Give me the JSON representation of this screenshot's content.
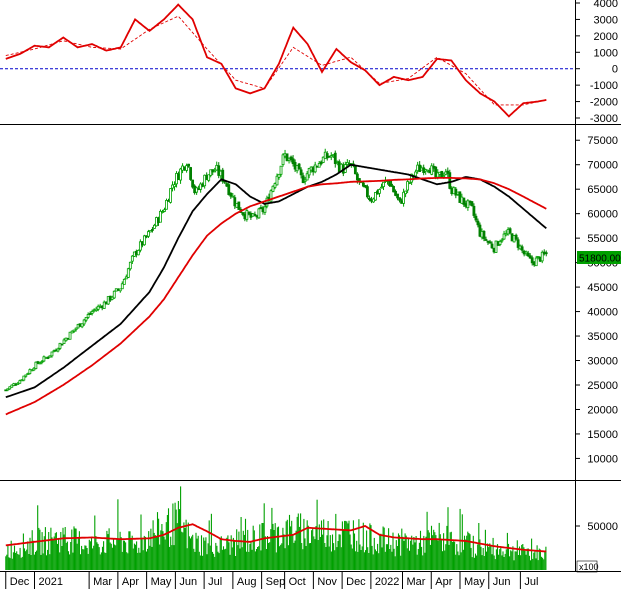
{
  "chart_data": [
    {
      "panel": "macd-oscillator",
      "type": "line",
      "y_ticks": [
        "4000",
        "3000",
        "2000",
        "1000",
        "0",
        "-1000",
        "-2000",
        "-3000"
      ],
      "ylim": [
        -3000,
        4000
      ],
      "zero_line": true,
      "colors": {
        "macd": "#e00000",
        "signal": "#e00000",
        "zero": "#0000cc"
      },
      "series": [
        {
          "role": "macd",
          "style": "solid",
          "x": [
            0.0,
            0.5,
            1.0,
            1.5,
            2.0,
            2.5,
            3.0,
            3.5,
            4.0,
            4.5,
            5.0,
            5.5,
            6.0,
            6.5,
            7.0,
            7.5,
            8.0,
            8.5,
            9.0,
            9.5,
            10.0,
            10.5,
            11.0,
            11.5,
            12.0,
            12.5,
            13.0,
            13.5,
            14.0,
            14.5,
            15.0,
            15.5,
            16.0,
            16.5,
            17.0,
            17.5,
            18.0,
            18.5,
            18.8
          ],
          "values": [
            600,
            900,
            1400,
            1300,
            1900,
            1300,
            1500,
            1100,
            1300,
            3000,
            2300,
            3000,
            3900,
            3000,
            700,
            300,
            -1200,
            -1500,
            -1200,
            300,
            2500,
            1500,
            -200,
            1200,
            400,
            -100,
            -1000,
            -500,
            -700,
            -500,
            600,
            500,
            -700,
            -1500,
            -2000,
            -2900,
            -2100,
            -2000,
            -1900
          ]
        },
        {
          "role": "signal",
          "style": "dashed",
          "x": [
            0.0,
            1.0,
            2.0,
            3.0,
            4.0,
            5.0,
            6.0,
            7.0,
            8.0,
            9.0,
            10.0,
            11.0,
            12.0,
            13.0,
            14.0,
            15.0,
            16.0,
            17.0,
            18.0,
            18.8
          ],
          "values": [
            800,
            1200,
            1700,
            1300,
            1200,
            2400,
            3200,
            1200,
            -700,
            -1200,
            1300,
            200,
            700,
            -900,
            -600,
            700,
            -300,
            -2200,
            -2200,
            -1900
          ]
        }
      ]
    },
    {
      "panel": "price",
      "type": "candlestick",
      "y_ticks": [
        "75000",
        "70000",
        "65000",
        "60000",
        "55000",
        "50000",
        "45000",
        "40000",
        "35000",
        "30000",
        "25000",
        "20000",
        "15000",
        "10000"
      ],
      "ylim": [
        6000,
        77500
      ],
      "last_price_label": "51800.00",
      "colors": {
        "up": "#00a000",
        "down": "#008000",
        "ma_short": "#000000",
        "ma_long": "#e00000",
        "badge": "#00a000"
      },
      "close_path": {
        "x": [
          0.0,
          0.5,
          1.0,
          1.5,
          2.0,
          2.5,
          3.0,
          3.5,
          4.0,
          4.5,
          5.0,
          5.5,
          5.8,
          6.0,
          6.3,
          6.6,
          7.0,
          7.3,
          7.6,
          8.0,
          8.3,
          8.6,
          9.0,
          9.3,
          9.7,
          10.0,
          10.3,
          10.6,
          11.0,
          11.3,
          11.7,
          12.0,
          12.3,
          12.7,
          13.0,
          13.3,
          13.7,
          14.0,
          14.3,
          14.7,
          15.0,
          15.3,
          15.5,
          15.8,
          16.2,
          16.5,
          16.8,
          17.0,
          17.2,
          17.5,
          17.8,
          18.0,
          18.3,
          18.6,
          18.8
        ],
        "values": [
          24000,
          26000,
          29000,
          31000,
          34000,
          37000,
          40000,
          42000,
          45000,
          52000,
          56000,
          61000,
          66000,
          68000,
          71000,
          64000,
          68000,
          69000,
          67000,
          62000,
          60000,
          59000,
          61000,
          66000,
          72000,
          70000,
          67000,
          69000,
          71000,
          72000,
          69000,
          70000,
          66000,
          63000,
          65000,
          67000,
          62000,
          66000,
          69000,
          70000,
          67000,
          69000,
          65000,
          63000,
          61000,
          56000,
          54000,
          53000,
          55000,
          56000,
          54000,
          52000,
          50000,
          51000,
          51800
        ]
      },
      "series": [
        {
          "role": "ma_short",
          "x": [
            0.0,
            1.0,
            2.0,
            3.0,
            4.0,
            5.0,
            5.5,
            6.0,
            6.5,
            7.0,
            7.5,
            8.0,
            8.5,
            9.0,
            9.5,
            10.0,
            10.5,
            11.0,
            11.5,
            12.0,
            12.5,
            13.0,
            13.5,
            14.0,
            14.5,
            15.0,
            15.5,
            16.0,
            16.5,
            17.0,
            17.5,
            18.0,
            18.8
          ],
          "values": [
            22500,
            24500,
            28500,
            33000,
            37500,
            44000,
            49000,
            55000,
            60500,
            64000,
            67000,
            66000,
            63500,
            62000,
            62500,
            64000,
            65500,
            66500,
            68000,
            70000,
            69500,
            69000,
            68500,
            68000,
            67000,
            66000,
            66500,
            67500,
            67000,
            65500,
            63500,
            61000,
            57000
          ]
        },
        {
          "role": "ma_long",
          "x": [
            0.0,
            1.0,
            2.0,
            3.0,
            4.0,
            5.0,
            5.5,
            6.0,
            6.5,
            7.0,
            7.5,
            8.0,
            8.5,
            9.0,
            9.5,
            10.0,
            10.5,
            11.0,
            11.5,
            12.0,
            12.5,
            13.0,
            13.5,
            14.0,
            14.5,
            15.0,
            15.5,
            16.0,
            16.5,
            17.0,
            17.5,
            18.0,
            18.8
          ],
          "values": [
            19000,
            21500,
            25000,
            29000,
            33500,
            39000,
            42500,
            47000,
            51500,
            55500,
            58000,
            60000,
            61500,
            62500,
            63500,
            64500,
            65500,
            66000,
            66200,
            66500,
            66600,
            66700,
            66900,
            67000,
            67200,
            67300,
            67300,
            67200,
            67000,
            66200,
            65000,
            63500,
            61000
          ]
        }
      ]
    },
    {
      "panel": "volume",
      "type": "bar",
      "y_ticks": [
        "50000"
      ],
      "ylim": [
        0,
        100000
      ],
      "unit_label": "x100",
      "colors": {
        "bars": "#00a000",
        "avg": "#e00000"
      },
      "volume_profile": {
        "x": [
          0.0,
          1.0,
          2.0,
          3.0,
          4.0,
          4.5,
          5.0,
          5.5,
          6.0,
          6.5,
          7.0,
          7.5,
          8.0,
          8.5,
          9.0,
          9.5,
          10.0,
          10.5,
          11.0,
          11.5,
          12.0,
          12.5,
          13.0,
          13.5,
          14.0,
          14.5,
          15.0,
          15.5,
          16.0,
          16.5,
          17.0,
          17.5,
          18.0,
          18.8
        ],
        "values": [
          25000,
          35000,
          40000,
          32000,
          38000,
          30000,
          45000,
          52000,
          60000,
          35000,
          32000,
          30000,
          34000,
          38000,
          42000,
          45000,
          50000,
          48000,
          47000,
          44000,
          50000,
          40000,
          38000,
          34000,
          36000,
          33000,
          42000,
          36000,
          33000,
          28000,
          27000,
          25000,
          22000,
          21000
        ]
      },
      "series": [
        {
          "role": "avg",
          "x": [
            0.0,
            1.0,
            2.0,
            3.0,
            4.0,
            5.0,
            5.5,
            6.0,
            6.5,
            7.0,
            7.5,
            8.0,
            8.5,
            9.0,
            9.5,
            10.0,
            10.5,
            11.0,
            11.5,
            12.0,
            12.5,
            13.0,
            13.5,
            14.0,
            14.5,
            15.0,
            15.5,
            16.0,
            16.5,
            17.0,
            17.5,
            18.0,
            18.8
          ],
          "values": [
            28000,
            32000,
            36000,
            37000,
            35000,
            36000,
            40000,
            48000,
            52000,
            44000,
            35000,
            33000,
            32000,
            36000,
            38000,
            40000,
            48000,
            47000,
            46000,
            45000,
            50000,
            40000,
            37000,
            36000,
            35000,
            35000,
            34000,
            33000,
            30000,
            27000,
            25000,
            23000,
            21000
          ]
        }
      ]
    }
  ],
  "x_axis": {
    "labels": [
      "Dec",
      "2021",
      "Mar",
      "Apr",
      "May",
      "Jun",
      "Jul",
      "Aug",
      "Sep",
      "Oct",
      "Nov",
      "Dec",
      "2022",
      "Mar",
      "Apr",
      "May",
      "Jun",
      "Jul"
    ],
    "positions": [
      0.0,
      1.0,
      2.9,
      3.9,
      4.9,
      5.9,
      6.9,
      7.9,
      8.9,
      9.7,
      10.7,
      11.7,
      12.7,
      13.8,
      14.8,
      15.8,
      16.8,
      17.9
    ],
    "range": [
      -0.2,
      19.8
    ]
  }
}
